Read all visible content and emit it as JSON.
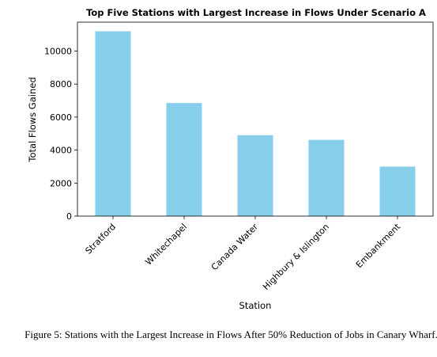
{
  "chart_data": {
    "type": "bar",
    "title": "Top Five Stations with Largest Increase in Flows Under Scenario A",
    "xlabel": "Station",
    "ylabel": "Total Flows Gained",
    "categories": [
      "Stratford",
      "Whitechapel",
      "Canada Water",
      "Highbury & Islington",
      "Embankment"
    ],
    "values": [
      11200,
      6850,
      4900,
      4620,
      3000
    ],
    "ylim": [
      0,
      11750
    ],
    "yticks": [
      0,
      2000,
      4000,
      6000,
      8000,
      10000
    ],
    "grid": false,
    "bar_color": "#87CEEB",
    "xtick_rotation": 45
  },
  "caption": "Figure 5: Stations with the Largest Increase in Flows After 50% Reduction of Jobs in Canary Wharf."
}
